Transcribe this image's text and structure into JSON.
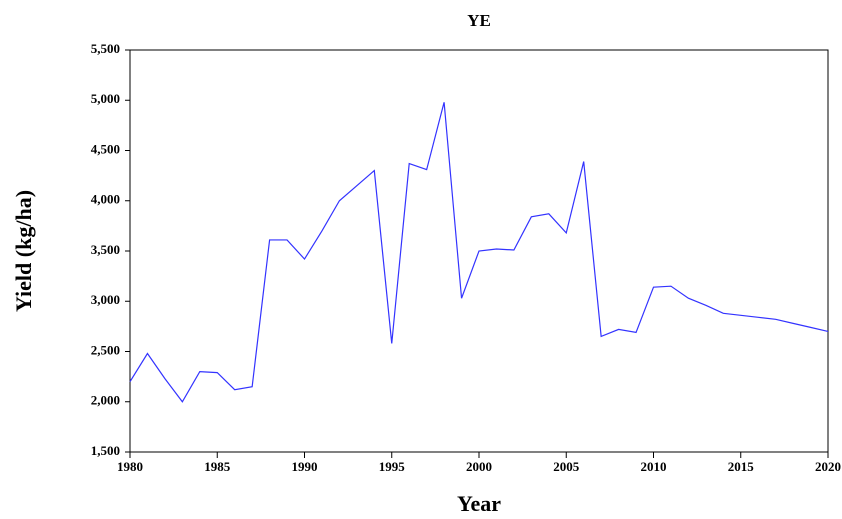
{
  "chart_data": {
    "type": "line",
    "title": "YE",
    "x_label": "Year",
    "y_label": "Yield (kg/ha)",
    "x": [
      1980,
      1981,
      1982,
      1983,
      1984,
      1985,
      1986,
      1987,
      1988,
      1989,
      1990,
      1991,
      1992,
      1993,
      1994,
      1995,
      1996,
      1997,
      1998,
      1999,
      2000,
      2001,
      2002,
      2003,
      2004,
      2005,
      2006,
      2007,
      2008,
      2009,
      2010,
      2011,
      2012,
      2013,
      2014,
      2015,
      2016,
      2017,
      2018,
      2019,
      2020
    ],
    "series": [
      {
        "color": "#3333ff",
        "values": [
          2200,
          2480,
          2230,
          2000,
          2300,
          2290,
          2120,
          2150,
          3610,
          3610,
          3420,
          3700,
          4000,
          4150,
          4300,
          2580,
          4370,
          4310,
          4980,
          3030,
          3500,
          3520,
          3510,
          3840,
          3870,
          3680,
          4390,
          2650,
          2720,
          2690,
          3140,
          3150,
          3030,
          2960,
          2880,
          2860,
          2840,
          2820,
          2780,
          2740,
          2700
        ]
      }
    ],
    "xlim": [
      1980,
      2020
    ],
    "xticks": [
      1980,
      1985,
      1990,
      1995,
      2000,
      2005,
      2010,
      2015,
      2020
    ],
    "ylim": [
      1500,
      5500
    ],
    "yticks": [
      {
        "value": 1500,
        "label": "1,500"
      },
      {
        "value": 2000,
        "label": "2,000"
      },
      {
        "value": 2500,
        "label": "2,500"
      },
      {
        "value": 3000,
        "label": "3,000"
      },
      {
        "value": 3500,
        "label": "3,500"
      },
      {
        "value": 4000,
        "label": "4,000"
      },
      {
        "value": 4500,
        "label": "4,500"
      },
      {
        "value": 5000,
        "label": "5,000"
      },
      {
        "value": 5500,
        "label": "5,500"
      }
    ]
  }
}
